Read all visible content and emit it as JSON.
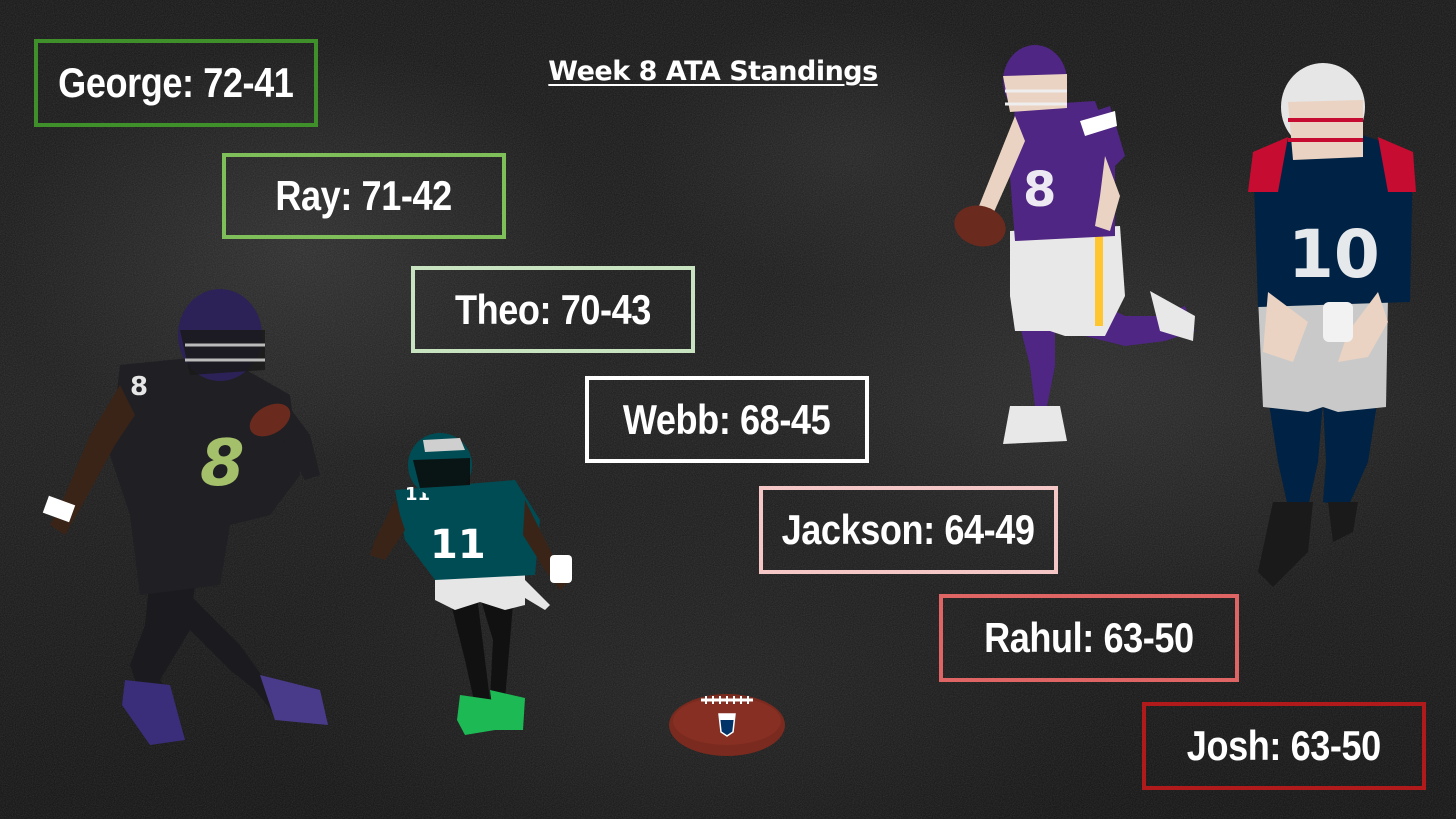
{
  "title": "Week 8 ATA Standings",
  "standings": [
    {
      "name": "George",
      "record": "72-41",
      "label": "George: 72-41",
      "color": "#3f8f2a"
    },
    {
      "name": "Ray",
      "record": "71-42",
      "label": "Ray: 71-42",
      "color": "#7fbf5a"
    },
    {
      "name": "Theo",
      "record": "70-43",
      "label": "Theo: 70-43",
      "color": "#c8e3c0"
    },
    {
      "name": "Webb",
      "record": "68-45",
      "label": "Webb: 68-45",
      "color": "#ffffff"
    },
    {
      "name": "Jackson",
      "record": "64-49",
      "label": "Jackson: 64-49",
      "color": "#f4c6c6"
    },
    {
      "name": "Rahul",
      "record": "63-50",
      "label": "Rahul: 63-50",
      "color": "#df6464"
    },
    {
      "name": "Josh",
      "record": "63-50",
      "label": "Josh: 63-50",
      "color": "#b01a1a"
    }
  ],
  "images": {
    "player_ravens": {
      "description_icon": "football-player-ravens-icon",
      "jersey_number": "8",
      "colors": {
        "primary": "#1b1b1f",
        "accent": "#241773",
        "number": "#a4c06a"
      }
    },
    "player_eagles": {
      "description_icon": "football-player-eagles-icon",
      "jersey_number": "11",
      "colors": {
        "primary": "#004c54",
        "accent": "#ffffff",
        "cleats": "#1db954"
      }
    },
    "player_vikings": {
      "description_icon": "football-player-vikings-icon",
      "jersey_number": "8",
      "colors": {
        "primary": "#4f2683",
        "accent": "#ffc62f",
        "pants": "#e8e8e8"
      }
    },
    "player_patriots": {
      "description_icon": "football-player-patriots-icon",
      "jersey_number": "10",
      "colors": {
        "primary": "#002244",
        "accent": "#c60c30",
        "pants": "#c9c9c9"
      }
    },
    "football": {
      "description_icon": "nfl-football-icon",
      "colors": {
        "leather": "#7a2a1e",
        "laces": "#ffffff"
      }
    }
  }
}
